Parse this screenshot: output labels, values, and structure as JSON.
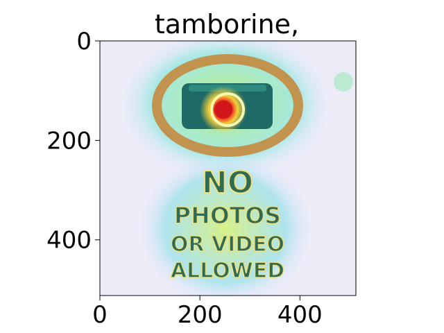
{
  "chart_data": {
    "type": "heatmap",
    "title": "tamborine,",
    "xlabel": "",
    "ylabel": "",
    "xlim": [
      0,
      512
    ],
    "ylim": [
      512,
      0
    ],
    "x_ticks": [
      0,
      200,
      400
    ],
    "y_ticks": [
      0,
      200,
      400
    ],
    "grid": false,
    "colormap": "jet",
    "image_text": [
      "NO",
      "PHOTOS",
      "OR VIDEO",
      "ALLOWED"
    ],
    "heat_peak": {
      "x": 250,
      "y": 135
    }
  }
}
